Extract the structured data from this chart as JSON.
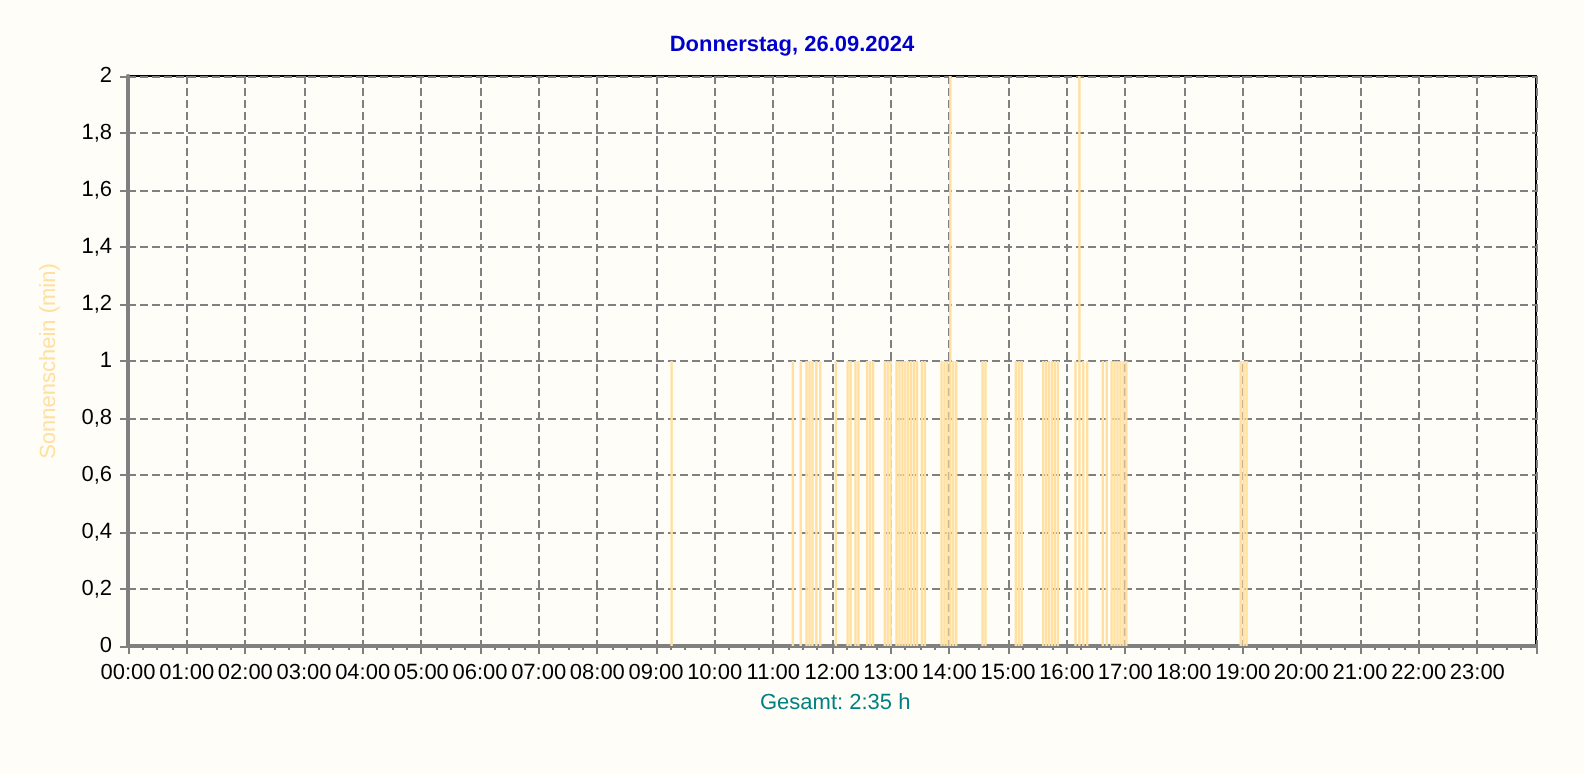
{
  "chart_data": {
    "type": "bar",
    "title": "Donnerstag, 26.09.2024",
    "ylabel": "Sonnenschein (min)",
    "annotations": [
      "Gesamt: 2:35 h"
    ],
    "x": [
      "2024-09-26T09:16",
      "2024-09-26T11:20",
      "2024-09-26T11:28",
      "2024-09-26T11:34",
      "2024-09-26T11:37",
      "2024-09-26T11:40",
      "2024-09-26T11:44",
      "2024-09-26T11:48",
      "2024-09-26T12:04",
      "2024-09-26T12:16",
      "2024-09-26T12:19",
      "2024-09-26T12:24",
      "2024-09-26T12:27",
      "2024-09-26T12:36",
      "2024-09-26T12:39",
      "2024-09-26T12:42",
      "2024-09-26T12:54",
      "2024-09-26T12:57",
      "2024-09-26T13:00",
      "2024-09-26T13:06",
      "2024-09-26T13:09",
      "2024-09-26T13:12",
      "2024-09-26T13:15",
      "2024-09-26T13:18",
      "2024-09-26T13:21",
      "2024-09-26T13:24",
      "2024-09-26T13:27",
      "2024-09-26T13:32",
      "2024-09-26T13:35",
      "2024-09-26T13:52",
      "2024-09-26T13:55",
      "2024-09-26T13:58",
      "2024-09-26T14:01",
      "2024-09-26T14:04",
      "2024-09-26T14:07",
      "2024-09-26T14:34",
      "2024-09-26T14:37",
      "2024-09-26T15:08",
      "2024-09-26T15:11",
      "2024-09-26T15:14",
      "2024-09-26T15:36",
      "2024-09-26T15:39",
      "2024-09-26T15:42",
      "2024-09-26T15:45",
      "2024-09-26T15:48",
      "2024-09-26T15:51",
      "2024-09-26T16:09",
      "2024-09-26T16:13",
      "2024-09-26T16:17",
      "2024-09-26T16:21",
      "2024-09-26T16:37",
      "2024-09-26T16:41",
      "2024-09-26T16:46",
      "2024-09-26T16:49",
      "2024-09-26T16:52",
      "2024-09-26T16:55",
      "2024-09-26T16:58",
      "2024-09-26T17:01",
      "2024-09-26T18:58",
      "2024-09-26T19:01",
      "2024-09-26T19:04"
    ],
    "values": [
      1,
      1,
      1,
      1,
      1,
      1,
      1,
      1,
      1,
      1,
      1,
      1,
      1,
      1,
      1,
      1,
      1,
      1,
      1,
      1,
      1,
      1,
      1,
      1,
      1,
      1,
      1,
      1,
      1,
      1,
      1,
      1,
      2,
      1,
      1,
      1,
      1,
      1,
      1,
      1,
      1,
      1,
      1,
      1,
      1,
      1,
      1,
      2,
      1,
      1,
      1,
      1,
      1,
      1,
      1,
      1,
      1,
      1,
      1,
      1,
      1
    ],
    "color": "#ffe0a0",
    "xlim": [
      "2024-09-26T00:00",
      "2024-09-27T00:00"
    ],
    "xticks": [
      {
        "value": "2024-09-26T00:00",
        "label": "00:00"
      },
      {
        "value": "2024-09-26T01:00",
        "label": "01:00"
      },
      {
        "value": "2024-09-26T02:00",
        "label": "02:00"
      },
      {
        "value": "2024-09-26T03:00",
        "label": "03:00"
      },
      {
        "value": "2024-09-26T04:00",
        "label": "04:00"
      },
      {
        "value": "2024-09-26T05:00",
        "label": "05:00"
      },
      {
        "value": "2024-09-26T06:00",
        "label": "06:00"
      },
      {
        "value": "2024-09-26T07:00",
        "label": "07:00"
      },
      {
        "value": "2024-09-26T08:00",
        "label": "08:00"
      },
      {
        "value": "2024-09-26T09:00",
        "label": "09:00"
      },
      {
        "value": "2024-09-26T10:00",
        "label": "10:00"
      },
      {
        "value": "2024-09-26T11:00",
        "label": "11:00"
      },
      {
        "value": "2024-09-26T12:00",
        "label": "12:00"
      },
      {
        "value": "2024-09-26T13:00",
        "label": "13:00"
      },
      {
        "value": "2024-09-26T14:00",
        "label": "14:00"
      },
      {
        "value": "2024-09-26T15:00",
        "label": "15:00"
      },
      {
        "value": "2024-09-26T16:00",
        "label": "16:00"
      },
      {
        "value": "2024-09-26T17:00",
        "label": "17:00"
      },
      {
        "value": "2024-09-26T18:00",
        "label": "18:00"
      },
      {
        "value": "2024-09-26T19:00",
        "label": "19:00"
      },
      {
        "value": "2024-09-26T20:00",
        "label": "20:00"
      },
      {
        "value": "2024-09-26T21:00",
        "label": "21:00"
      },
      {
        "value": "2024-09-26T22:00",
        "label": "22:00"
      },
      {
        "value": "2024-09-26T23:00",
        "label": "23:00"
      }
    ],
    "ylim": [
      0,
      2
    ],
    "yticks": [
      0,
      {
        "value": 0.2,
        "label": "0,2"
      },
      {
        "value": 0.4,
        "label": "0,4"
      },
      {
        "value": 0.6,
        "label": "0,6"
      },
      {
        "value": 0.8,
        "label": "0,8"
      },
      1,
      {
        "value": 1.2,
        "label": "1,2"
      },
      {
        "value": 1.4,
        "label": "1,4"
      },
      {
        "value": 1.6,
        "label": "1,6"
      },
      {
        "value": 1.8,
        "label": "1,8"
      },
      2
    ],
    "grid": true
  }
}
